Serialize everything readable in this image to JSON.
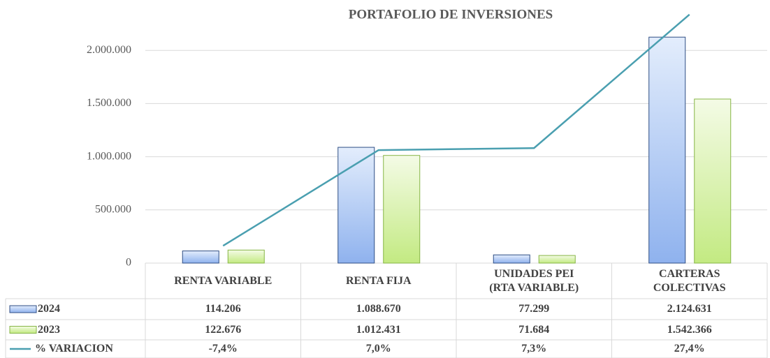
{
  "chart_data": {
    "type": "bar",
    "title": "PORTAFOLIO DE INVERSIONES",
    "categories": [
      "RENTA VARIABLE",
      "RENTA FIJA",
      "UNIDADES PEI\n(RTA VARIABLE)",
      "CARTERAS\nCOLECTIVAS"
    ],
    "series": [
      {
        "name": "2024",
        "color": "#9dbdf0",
        "values": [
          114206,
          1088670,
          77299,
          2124631
        ],
        "value_labels": [
          "114.206",
          "1.088.670",
          "77.299",
          "2.124.631"
        ]
      },
      {
        "name": "2023",
        "color": "#d3f0a0",
        "values": [
          122676,
          1012431,
          71684,
          1542366
        ],
        "value_labels": [
          "122.676",
          "1.012.431",
          "71.684",
          "1.542.366"
        ]
      },
      {
        "name": "% VARIACION",
        "type": "line",
        "axis": "y2",
        "color": "#4a9fb0",
        "values": [
          -7.4,
          7.0,
          7.3,
          27.4
        ],
        "value_labels": [
          "-7,4%",
          "7,0%",
          "7,3%",
          "27,4%"
        ]
      }
    ],
    "ylim": [
      0,
      2500000
    ],
    "yticks": [
      0,
      {
        "value": 500000,
        "label": "500.000"
      },
      {
        "value": 1000000,
        "label": "1.000.000"
      },
      {
        "value": 1500000,
        "label": "1.500.000"
      },
      {
        "value": 2000000,
        "label": "2.000.000"
      }
    ],
    "y2lim": [
      -10,
      30
    ],
    "grid": true
  }
}
